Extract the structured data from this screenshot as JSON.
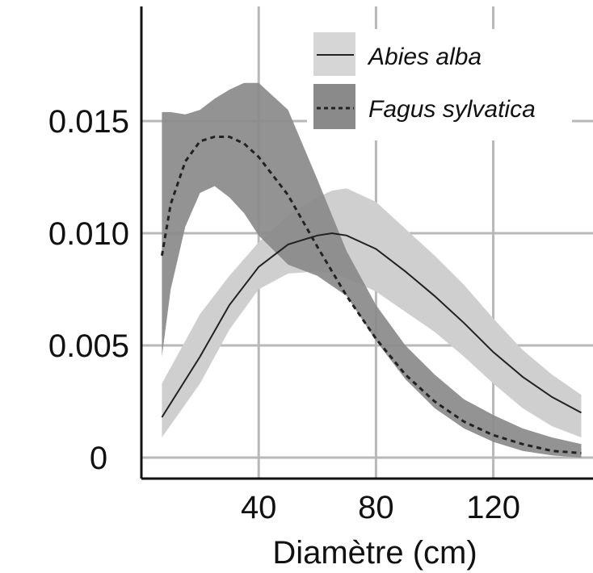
{
  "chart_data": {
    "type": "line",
    "title": "",
    "xlabel": "Diamètre (cm)",
    "ylabel": "",
    "xlim": [
      0,
      154
    ],
    "ylim": [
      0,
      0.02
    ],
    "grid": true,
    "legend_position": "top-right",
    "x_ticks": [
      {
        "value": 40,
        "label": "40"
      },
      {
        "value": 80,
        "label": "80"
      },
      {
        "value": 120,
        "label": "120"
      }
    ],
    "y_ticks": [
      {
        "value": 0,
        "label": "0"
      },
      {
        "value": 0.005,
        "label": "0.005"
      },
      {
        "value": 0.01,
        "label": "0.010"
      },
      {
        "value": 0.015,
        "label": "0.015"
      }
    ],
    "colors": {
      "abies_band": "#cfcfcf",
      "fagus_band": "#8a8a8a",
      "line": "#222222",
      "grid": "#b8b8b8"
    },
    "series": [
      {
        "name": "Abies alba",
        "style": "solid",
        "x": [
          7,
          20,
          30,
          40,
          50,
          60,
          65,
          70,
          80,
          90,
          100,
          110,
          120,
          130,
          140,
          150
        ],
        "y": [
          0.0018,
          0.0045,
          0.0068,
          0.0085,
          0.0095,
          0.0099,
          0.01,
          0.0099,
          0.0093,
          0.0083,
          0.0072,
          0.006,
          0.0047,
          0.0036,
          0.0027,
          0.002
        ],
        "band_upper": [
          0.0033,
          0.0064,
          0.0081,
          0.0096,
          0.0108,
          0.0116,
          0.0119,
          0.012,
          0.0114,
          0.0102,
          0.009,
          0.0077,
          0.0062,
          0.0048,
          0.0037,
          0.0028
        ],
        "band_lower": [
          0.0009,
          0.0033,
          0.0057,
          0.0075,
          0.0082,
          0.0083,
          0.0082,
          0.008,
          0.0074,
          0.0065,
          0.0056,
          0.0045,
          0.0033,
          0.0022,
          0.0014,
          0.0009
        ]
      },
      {
        "name": "Fagus sylvatica",
        "style": "dashed",
        "x": [
          7,
          10,
          15,
          20,
          25,
          30,
          35,
          40,
          50,
          60,
          70,
          80,
          90,
          100,
          110,
          120,
          130,
          140,
          150
        ],
        "y": [
          0.009,
          0.0113,
          0.0132,
          0.0141,
          0.0143,
          0.0143,
          0.014,
          0.0134,
          0.0117,
          0.0094,
          0.0072,
          0.0053,
          0.0037,
          0.0025,
          0.0016,
          0.001,
          0.0006,
          0.0003,
          0.0002
        ],
        "band_upper": [
          0.0154,
          0.0154,
          0.0153,
          0.0155,
          0.016,
          0.0164,
          0.0167,
          0.0167,
          0.0155,
          0.0124,
          0.0092,
          0.0068,
          0.005,
          0.0037,
          0.0026,
          0.0019,
          0.0013,
          0.0009,
          0.0006
        ],
        "band_lower": [
          0.0045,
          0.0075,
          0.0103,
          0.0118,
          0.0121,
          0.0116,
          0.0109,
          0.0099,
          0.0086,
          0.0081,
          0.0072,
          0.0052,
          0.0035,
          0.0022,
          0.0013,
          0.0007,
          0.0003,
          0.0001,
          0.0
        ]
      }
    ]
  }
}
